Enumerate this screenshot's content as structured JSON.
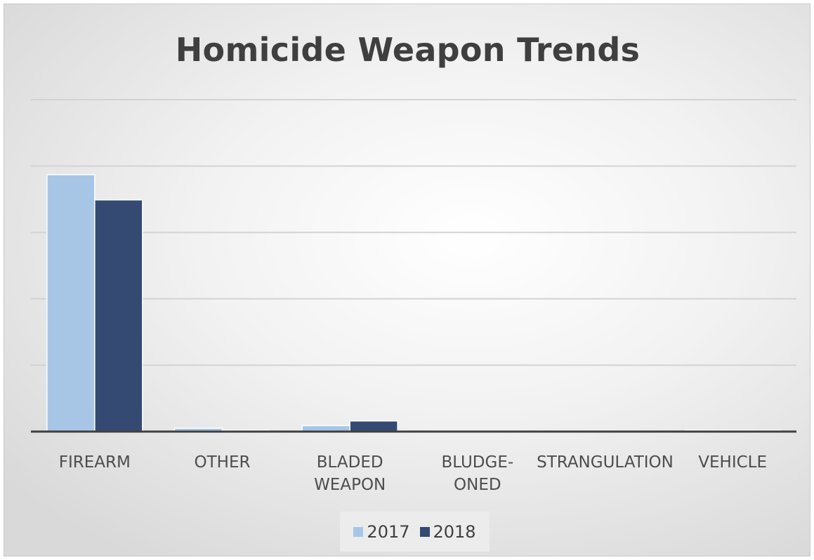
{
  "chart_data": {
    "type": "bar",
    "title": "Homicide Weapon Trends",
    "categories": [
      "FIREARM",
      "OTHER",
      "BLADED WEAPON",
      "BLUDGE-ONED",
      "STRANGULATION",
      "VEHICLE"
    ],
    "category_lines": [
      [
        "FIREARM"
      ],
      [
        "OTHER"
      ],
      [
        "BLADED",
        "WEAPON"
      ],
      [
        "BLUDGE-",
        "ONED"
      ],
      [
        "STRANGULATION"
      ],
      [
        "VEHICLE"
      ]
    ],
    "series": [
      {
        "name": "2017",
        "color": "#a7c6e6",
        "values": [
          3.87,
          0.05,
          0.09,
          0.01,
          0.01,
          0.02
        ]
      },
      {
        "name": "2018",
        "color": "#344a72",
        "values": [
          3.49,
          0.02,
          0.16,
          0.01,
          0.01,
          0.02
        ]
      }
    ],
    "ylim": [
      0,
      5
    ],
    "gridlines": true,
    "legend_position": "bottom"
  }
}
